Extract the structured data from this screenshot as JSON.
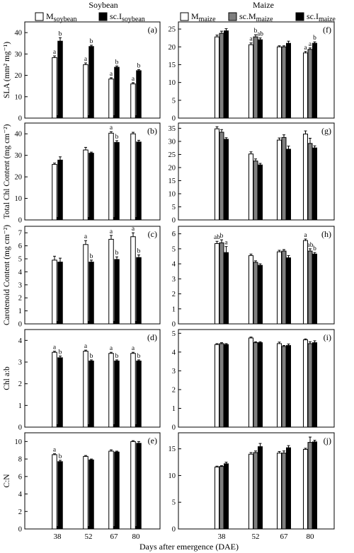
{
  "figure": {
    "col_titles": [
      "Soybean",
      "Maize"
    ],
    "xlabel": "Days after emergence (DAE)",
    "legend_soy": [
      {
        "base": "M",
        "sub": "soybean",
        "color": "#ffffff"
      },
      {
        "base": "sc.I",
        "sub": "soybean",
        "color": "#000000"
      }
    ],
    "legend_maize": [
      {
        "base": "M",
        "sub": "maize",
        "color": "#ffffff"
      },
      {
        "base": "sc.M",
        "sub": "maize",
        "color": "#7f7f7f"
      },
      {
        "base": "sc.I",
        "sub": "maize",
        "color": "#000000"
      }
    ],
    "row_ylabels": [
      "SLA (mm² mg⁻¹)",
      "Total Chl Content (mg cm⁻²)",
      "Carotenoid Content (mg cm⁻²)",
      "Chl a:b",
      "C:N"
    ]
  },
  "chart_data": [
    {
      "type": "bar",
      "panel": "(a)",
      "crop": "Soybean",
      "ylabel": "SLA (mm² mg⁻¹)",
      "categories": [
        "38",
        "52",
        "67",
        "80"
      ],
      "ylim": [
        0,
        45
      ],
      "yticks": [
        0,
        10,
        20,
        30,
        40
      ],
      "series": [
        {
          "name": "Msoybean",
          "values": [
            28.3,
            25.0,
            18.3,
            16.0
          ],
          "err": [
            0.8,
            0.8,
            0.6,
            0.6
          ]
        },
        {
          "name": "sc.Isoybean",
          "values": [
            36.0,
            33.5,
            23.8,
            22.2
          ],
          "err": [
            1.6,
            0.6,
            0.6,
            0.5
          ]
        }
      ],
      "letters": [
        [
          "a",
          "a",
          "a",
          "a"
        ],
        [
          "b",
          "b",
          "b",
          "b"
        ]
      ]
    },
    {
      "type": "bar",
      "panel": "(b)",
      "crop": "Soybean",
      "ylabel": "Total Chl Content (mg cm⁻²)",
      "categories": [
        "38",
        "52",
        "67",
        "80"
      ],
      "ylim": [
        0,
        45
      ],
      "yticks": [
        0,
        10,
        20,
        30,
        40
      ],
      "series": [
        {
          "name": "Msoybean",
          "values": [
            25.8,
            32.5,
            40.3,
            40.0
          ],
          "err": [
            0.6,
            1.2,
            0.7,
            0.7
          ]
        },
        {
          "name": "sc.Isoybean",
          "values": [
            27.8,
            31.0,
            36.0,
            36.2
          ],
          "err": [
            1.5,
            0.5,
            0.8,
            0.8
          ]
        }
      ],
      "letters": [
        [
          "",
          "",
          "a",
          ""
        ],
        [
          "",
          "",
          "b",
          ""
        ]
      ]
    },
    {
      "type": "bar",
      "panel": "(c)",
      "crop": "Soybean",
      "ylabel": "Carotenoid Content (mg cm⁻²)",
      "categories": [
        "38",
        "52",
        "67",
        "80"
      ],
      "ylim": [
        0,
        7.5
      ],
      "yticks": [
        0,
        1,
        2,
        3,
        4,
        5,
        6,
        7
      ],
      "series": [
        {
          "name": "Msoybean",
          "values": [
            4.9,
            6.1,
            6.5,
            6.7
          ],
          "err": [
            0.3,
            0.3,
            0.3,
            0.3
          ]
        },
        {
          "name": "sc.Isoybean",
          "values": [
            4.75,
            4.75,
            4.95,
            5.1
          ],
          "err": [
            0.3,
            0.15,
            0.2,
            0.2
          ]
        }
      ],
      "letters": [
        [
          "",
          "a",
          "a",
          "a"
        ],
        [
          "",
          "b",
          "b",
          "b"
        ]
      ]
    },
    {
      "type": "bar",
      "panel": "(d)",
      "crop": "Soybean",
      "ylabel": "Chl a:b",
      "categories": [
        "38",
        "52",
        "67",
        "80"
      ],
      "ylim": [
        0,
        4.5
      ],
      "yticks": [
        0,
        1,
        2,
        3,
        4
      ],
      "series": [
        {
          "name": "Msoybean",
          "values": [
            3.45,
            3.5,
            3.4,
            3.4
          ],
          "err": [
            0.05,
            0.05,
            0.05,
            0.05
          ]
        },
        {
          "name": "sc.Isoybean",
          "values": [
            3.2,
            3.05,
            3.05,
            3.05
          ],
          "err": [
            0.08,
            0.05,
            0.05,
            0.05
          ]
        }
      ],
      "letters": [
        [
          "a",
          "a",
          "a",
          "a"
        ],
        [
          "b",
          "b",
          "b",
          "b"
        ]
      ]
    },
    {
      "type": "bar",
      "panel": "(e)",
      "crop": "Soybean",
      "ylabel": "C:N",
      "categories": [
        "38",
        "52",
        "67",
        "80"
      ],
      "ylim": [
        0,
        11
      ],
      "yticks": [
        0,
        2,
        4,
        6,
        8,
        10
      ],
      "series": [
        {
          "name": "Msoybean",
          "values": [
            8.5,
            8.3,
            8.9,
            10.0
          ],
          "err": [
            0.1,
            0.1,
            0.15,
            0.1
          ]
        },
        {
          "name": "sc.Isoybean",
          "values": [
            7.7,
            7.9,
            8.8,
            9.8
          ],
          "err": [
            0.15,
            0.1,
            0.1,
            0.2
          ]
        }
      ],
      "letters": [
        [
          "a",
          "",
          "",
          ""
        ],
        [
          "b",
          "",
          "",
          ""
        ]
      ]
    },
    {
      "type": "bar",
      "panel": "(f)",
      "crop": "Maize",
      "categories": [
        "38",
        "52",
        "67",
        "80"
      ],
      "ylim": [
        0,
        27
      ],
      "yticks": [
        0,
        5,
        10,
        15,
        20,
        25
      ],
      "series": [
        {
          "name": "Mmaize",
          "values": [
            22.8,
            20.6,
            20.0,
            18.3
          ],
          "err": [
            0.5,
            0.5,
            0.3,
            0.4
          ]
        },
        {
          "name": "sc.Mmaize",
          "values": [
            23.8,
            22.8,
            20.0,
            19.3
          ],
          "err": [
            0.6,
            0.6,
            0.3,
            0.4
          ]
        },
        {
          "name": "sc.Imaize",
          "values": [
            24.5,
            22.0,
            21.0,
            21.0
          ],
          "err": [
            0.6,
            0.5,
            0.6,
            0.4
          ]
        }
      ],
      "letters": [
        [
          "",
          "a",
          "",
          "a"
        ],
        [
          "",
          "b",
          "",
          "a"
        ],
        [
          "",
          "ab",
          "",
          "b"
        ]
      ]
    },
    {
      "type": "bar",
      "panel": "(g)",
      "crop": "Maize",
      "categories": [
        "38",
        "52",
        "67",
        "80"
      ],
      "ylim": [
        0,
        37
      ],
      "yticks": [
        0,
        5,
        10,
        15,
        20,
        25,
        30,
        35
      ],
      "series": [
        {
          "name": "Mmaize",
          "values": [
            34.8,
            25.2,
            30.5,
            32.8
          ],
          "err": [
            0.8,
            0.8,
            0.8,
            1.2
          ]
        },
        {
          "name": "sc.Mmaize",
          "values": [
            33.5,
            22.5,
            31.5,
            29.2
          ],
          "err": [
            1.0,
            0.8,
            1.0,
            2.0
          ]
        },
        {
          "name": "sc.Imaize",
          "values": [
            30.8,
            21.0,
            27.0,
            27.5
          ],
          "err": [
            0.6,
            0.6,
            1.2,
            0.8
          ]
        }
      ],
      "letters": [
        [
          "",
          "",
          "",
          ""
        ],
        [
          "",
          "",
          "",
          ""
        ],
        [
          "",
          "",
          "",
          ""
        ]
      ]
    },
    {
      "type": "bar",
      "panel": "(h)",
      "crop": "Maize",
      "categories": [
        "38",
        "52",
        "67",
        "80"
      ],
      "ylim": [
        0,
        6.5
      ],
      "yticks": [
        0,
        1,
        2,
        3,
        4,
        5,
        6
      ],
      "series": [
        {
          "name": "Mmaize",
          "values": [
            5.35,
            4.55,
            4.8,
            5.55
          ],
          "err": [
            0.15,
            0.1,
            0.1,
            0.1
          ]
        },
        {
          "name": "sc.Mmaize",
          "values": [
            5.4,
            4.1,
            4.85,
            4.85
          ],
          "err": [
            0.2,
            0.1,
            0.1,
            0.15
          ]
        },
        {
          "name": "sc.Imaize",
          "values": [
            4.75,
            3.9,
            4.4,
            4.65
          ],
          "err": [
            0.4,
            0.1,
            0.15,
            0.1
          ]
        }
      ],
      "letters": [
        [
          "ab",
          "",
          "",
          "a"
        ],
        [
          "b",
          "",
          "",
          "ab"
        ],
        [
          "a",
          "",
          "",
          "b"
        ]
      ]
    },
    {
      "type": "bar",
      "panel": "(i)",
      "crop": "Maize",
      "categories": [
        "38",
        "52",
        "67",
        "80"
      ],
      "ylim": [
        0,
        5.2
      ],
      "yticks": [
        0,
        1,
        2,
        3,
        4,
        5
      ],
      "series": [
        {
          "name": "Mmaize",
          "values": [
            4.4,
            4.75,
            4.45,
            4.65
          ],
          "err": [
            0.05,
            0.05,
            0.08,
            0.05
          ]
        },
        {
          "name": "sc.Mmaize",
          "values": [
            4.45,
            4.5,
            4.3,
            4.45
          ],
          "err": [
            0.05,
            0.05,
            0.05,
            0.1
          ]
        },
        {
          "name": "sc.Imaize",
          "values": [
            4.4,
            4.5,
            4.35,
            4.5
          ],
          "err": [
            0.05,
            0.05,
            0.08,
            0.1
          ]
        }
      ],
      "letters": [
        [
          "",
          "",
          "",
          ""
        ],
        [
          "",
          "",
          "",
          ""
        ],
        [
          "",
          "",
          "",
          ""
        ]
      ]
    },
    {
      "type": "bar",
      "panel": "(j)",
      "crop": "Maize",
      "categories": [
        "38",
        "52",
        "67",
        "80"
      ],
      "ylim": [
        0,
        18
      ],
      "yticks": [
        0,
        5,
        10,
        15
      ],
      "series": [
        {
          "name": "Mmaize",
          "values": [
            11.6,
            14.0,
            14.2,
            14.9
          ],
          "err": [
            0.15,
            0.3,
            0.3,
            0.2
          ]
        },
        {
          "name": "sc.Mmaize",
          "values": [
            11.7,
            14.3,
            14.2,
            16.2
          ],
          "err": [
            0.15,
            0.3,
            0.4,
            1.0
          ]
        },
        {
          "name": "sc.Imaize",
          "values": [
            12.2,
            15.4,
            15.2,
            16.3
          ],
          "err": [
            0.3,
            0.6,
            0.4,
            0.3
          ]
        }
      ],
      "letters": [
        [
          "",
          "",
          "",
          ""
        ],
        [
          "",
          "",
          "",
          ""
        ],
        [
          "",
          "",
          "",
          ""
        ]
      ]
    }
  ]
}
